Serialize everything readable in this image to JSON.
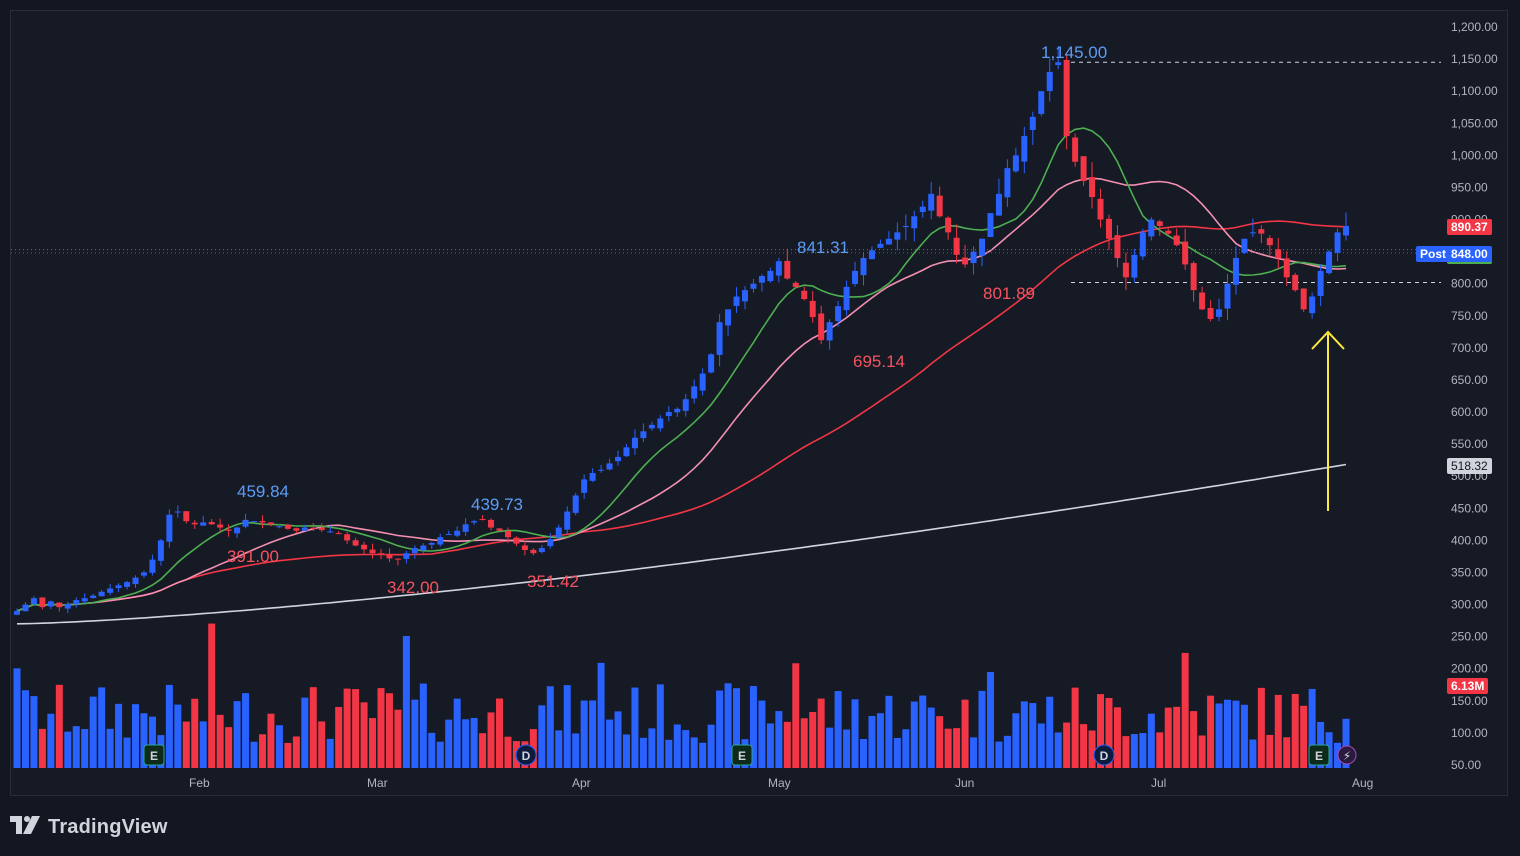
{
  "brand": {
    "name": "TradingView",
    "logo_icon": "tradingview-logo-icon"
  },
  "colors": {
    "up": "#2962ff",
    "down": "#f23645",
    "ma_fast": "#4caf50",
    "ma_mid": "#f48fb1",
    "ma_50": "#f23645",
    "ma_200": "#d1d4dc",
    "annotation_arrow": "#ffeb3b",
    "high_label": "#5b9cf6",
    "low_label": "#f7525f"
  },
  "price_axis": {
    "ticks": [
      "1,200.00",
      "1,150.00",
      "1,100.00",
      "1,050.00",
      "1,000.00",
      "950.00",
      "900.00",
      "850.00",
      "800.00",
      "750.00",
      "700.00",
      "650.00",
      "600.00",
      "550.00",
      "500.00",
      "450.00",
      "400.00",
      "350.00",
      "300.00",
      "250.00",
      "200.00",
      "150.00",
      "100.00",
      "50.00"
    ],
    "last_price_tag": "890.37",
    "post_label": "Post",
    "post_price_tag": "848.00",
    "ma200_tag": "518.32",
    "volume_tag": "6.13M"
  },
  "time_axis": {
    "labels": [
      "Feb",
      "Mar",
      "Apr",
      "May",
      "Jun",
      "Jul",
      "Aug"
    ]
  },
  "event_markers": [
    {
      "letter": "E",
      "kind": "earnings"
    },
    {
      "letter": "D",
      "kind": "dividend"
    },
    {
      "letter": "E",
      "kind": "earnings"
    },
    {
      "letter": "D",
      "kind": "dividend"
    },
    {
      "letter": "E",
      "kind": "earnings"
    },
    {
      "letter": "⚡",
      "kind": "lightning-icon"
    }
  ],
  "chart_data": {
    "type": "candlestick",
    "x_range": [
      "Jan",
      "Aug"
    ],
    "ylim": [
      50,
      1200
    ],
    "legend": "none",
    "grid": false,
    "annotations": [
      {
        "text": "459.84",
        "kind": "high"
      },
      {
        "text": "391.00",
        "kind": "low"
      },
      {
        "text": "342.00",
        "kind": "low"
      },
      {
        "text": "439.73",
        "kind": "high"
      },
      {
        "text": "351.42",
        "kind": "low"
      },
      {
        "text": "841.31",
        "kind": "high"
      },
      {
        "text": "695.14",
        "kind": "low"
      },
      {
        "text": "1,145.00",
        "kind": "high"
      },
      {
        "text": "801.89",
        "kind": "low"
      }
    ],
    "reference_lines": [
      1145,
      801.89
    ],
    "moving_averages": {
      "ma_200_end": 518.32
    },
    "candles_close": [
      290,
      300,
      310,
      296,
      305,
      296,
      301,
      307,
      310,
      314,
      320,
      325,
      330,
      335,
      342,
      350,
      370,
      400,
      440,
      445,
      430,
      425,
      428,
      425,
      420,
      415,
      420,
      432,
      430,
      428,
      425,
      422,
      418,
      415,
      420,
      418,
      416,
      414,
      410,
      400,
      392,
      386,
      380,
      378,
      372,
      370,
      380,
      388,
      392,
      396,
      405,
      410,
      415,
      425,
      430,
      432,
      420,
      415,
      405,
      395,
      385,
      380,
      388,
      402,
      420,
      445,
      470,
      495,
      505,
      510,
      520,
      530,
      545,
      560,
      570,
      580,
      590,
      600,
      605,
      620,
      640,
      660,
      690,
      740,
      760,
      780,
      790,
      800,
      812,
      820,
      835,
      808,
      795,
      776,
      748,
      712,
      740,
      765,
      795,
      820,
      840,
      852,
      862,
      870,
      880,
      890,
      905,
      920,
      940,
      905,
      880,
      845,
      830,
      850,
      870,
      910,
      940,
      980,
      1000,
      1030,
      1060,
      1100,
      1130,
      1145,
      1030,
      990,
      960,
      935,
      900,
      870,
      840,
      810,
      845,
      880,
      900,
      890,
      878,
      860,
      830,
      790,
      760,
      745,
      760,
      800,
      840,
      870,
      880,
      878,
      860,
      840,
      810,
      790,
      760,
      780,
      820,
      850,
      880,
      890
    ],
    "volume_unit": "M",
    "volume_last": 6.13
  }
}
